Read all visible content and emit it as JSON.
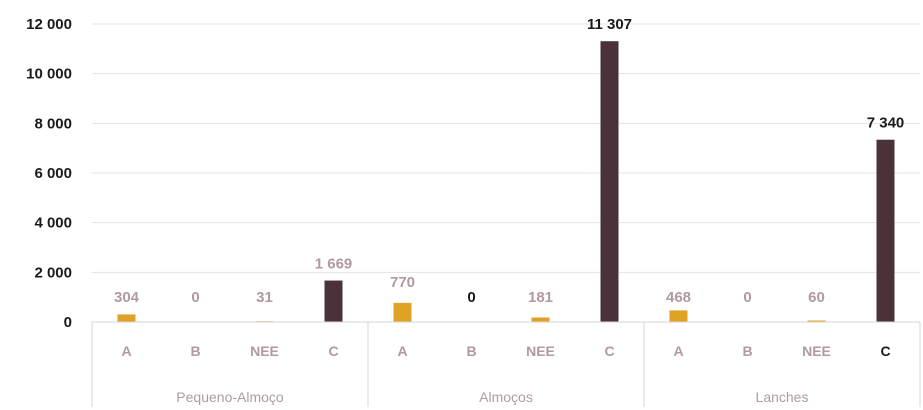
{
  "chart_data": {
    "type": "bar",
    "title": "",
    "xlabel": "",
    "ylabel": "",
    "ylim": [
      0,
      12000
    ],
    "yticks": [
      0,
      2000,
      4000,
      6000,
      8000,
      10000,
      12000
    ],
    "ytick_labels": [
      "0",
      "2 000",
      "4 000",
      "6 000",
      "8 000",
      "10 000",
      "12 000"
    ],
    "grid": true,
    "legend": "none",
    "colors": {
      "A": "#e0a225",
      "B": "#e0a225",
      "NEE": "#e0a225",
      "C": "#4a3238",
      "label_muted": "#b09aa0",
      "label_dark": "#1a1a1a"
    },
    "groups": [
      {
        "name": "Pequeno-Almoço",
        "bars": [
          {
            "category": "A",
            "value": 304,
            "label": "304",
            "label_style": "muted"
          },
          {
            "category": "B",
            "value": 0,
            "label": "0",
            "label_style": "muted"
          },
          {
            "category": "NEE",
            "value": 31,
            "label": "31",
            "label_style": "muted"
          },
          {
            "category": "C",
            "value": 1669,
            "label": "1 669",
            "label_style": "muted"
          }
        ]
      },
      {
        "name": "Almoços",
        "bars": [
          {
            "category": "A",
            "value": 770,
            "label": "770",
            "label_style": "muted"
          },
          {
            "category": "B",
            "value": 0,
            "label": "0",
            "label_style": "dark"
          },
          {
            "category": "NEE",
            "value": 181,
            "label": "181",
            "label_style": "muted"
          },
          {
            "category": "C",
            "value": 11307,
            "label": "11 307",
            "label_style": "dark"
          }
        ]
      },
      {
        "name": "Lanches",
        "bars": [
          {
            "category": "A",
            "value": 468,
            "label": "468",
            "label_style": "muted"
          },
          {
            "category": "B",
            "value": 0,
            "label": "0",
            "label_style": "muted"
          },
          {
            "category": "NEE",
            "value": 60,
            "label": "60",
            "label_style": "muted"
          },
          {
            "category": "C",
            "value": 7340,
            "label": "7 340",
            "label_style": "dark",
            "category_style": "dark"
          }
        ]
      }
    ]
  }
}
